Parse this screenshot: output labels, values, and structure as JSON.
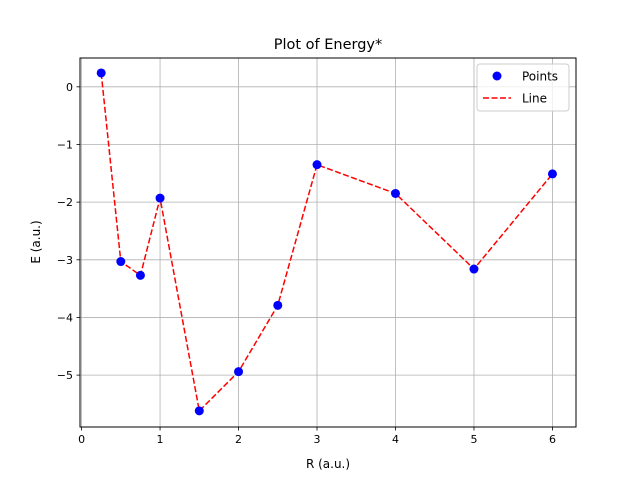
{
  "chart_data": {
    "type": "scatter",
    "title": "Plot of Energy*",
    "xlabel": "R (a.u.)",
    "ylabel": "E (a.u.)",
    "xlim": [
      -0.02,
      6.3
    ],
    "ylim": [
      -5.9,
      0.5
    ],
    "xticks": [
      0,
      1,
      2,
      3,
      4,
      5,
      6
    ],
    "yticks": [
      0,
      -1,
      -2,
      -3,
      -4,
      -5
    ],
    "xtick_labels": [
      "0",
      "1",
      "2",
      "3",
      "4",
      "5",
      "6"
    ],
    "ytick_labels": [
      "0",
      "−1",
      "−2",
      "−3",
      "−4",
      "−5"
    ],
    "grid": true,
    "legend_position": "top-right",
    "series": [
      {
        "name": "Points",
        "kind": "scatter",
        "color": "#0000ff",
        "x": [
          0.25,
          0.5,
          0.75,
          1.0,
          1.5,
          2.0,
          2.5,
          3.0,
          4.0,
          5.0,
          6.0
        ],
        "y": [
          0.24,
          -3.03,
          -3.27,
          -1.93,
          -5.62,
          -4.94,
          -3.79,
          -1.35,
          -1.85,
          -3.16,
          -1.51
        ]
      },
      {
        "name": "Line",
        "kind": "line",
        "style": "dashed",
        "color": "#ff0000",
        "x": [
          0.25,
          0.5,
          0.75,
          1.0,
          1.5,
          2.0,
          2.5,
          3.0,
          4.0,
          5.0,
          6.0
        ],
        "y": [
          0.24,
          -3.03,
          -3.27,
          -1.93,
          -5.62,
          -4.94,
          -3.79,
          -1.35,
          -1.85,
          -3.16,
          -1.51
        ]
      }
    ]
  }
}
